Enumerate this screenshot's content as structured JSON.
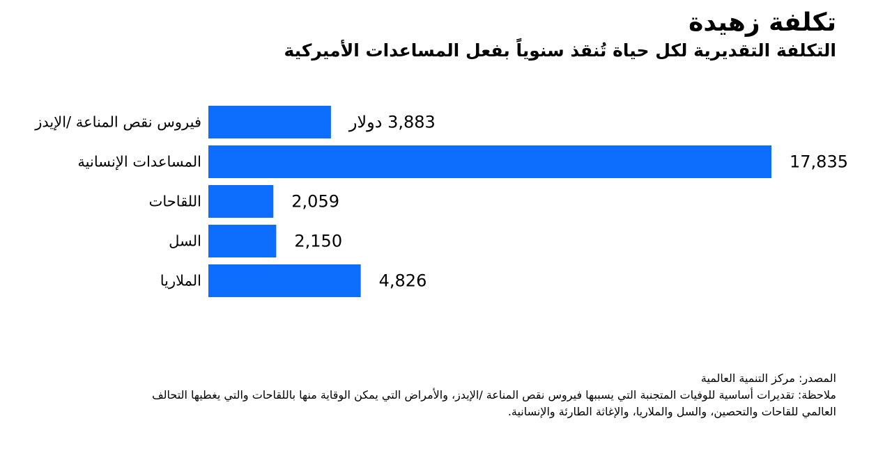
{
  "title": "تكلفة زهيدة",
  "subtitle": "التكلفة التقديرية لكل حياة تُنقذ سنوياً بفعل المساعدات الأميركية",
  "chart_data": {
    "type": "bar",
    "orientation": "horizontal",
    "categories": [
      "فيروس نقص المناعة /الإيدز",
      "المساعدات الإنسانية",
      "اللقاحات",
      "السل",
      "الملاريا"
    ],
    "values": [
      3883,
      17835,
      2059,
      2150,
      4826
    ],
    "value_labels": [
      "3,883 دولار",
      "17,835",
      "2,059",
      "2,150",
      "4,826"
    ],
    "bar_color": "#0d6efd",
    "xlim": [
      0,
      17835
    ],
    "grid": false,
    "legend": "none"
  },
  "footer": {
    "source": "المصدر: مركز التنمية العالمية",
    "note": "ملاحظة: تقديرات أساسية للوفيات المتجنبة التي يسببها فيروس نقص المناعة /الإيدز، والأمراض التي يمكن الوقاية منها باللقاحات والتي يغطيها التحالف العالمي للقاحات والتحصين، والسل والملاريا، والإغاثة الطارئة والإنسانية."
  }
}
